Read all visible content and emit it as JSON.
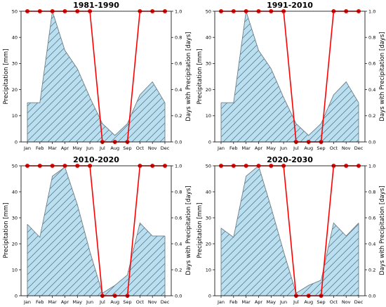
{
  "colors": {
    "area_fill": "#b9dff0",
    "area_edge": "#6f7f88",
    "hatch": "#5a6a74",
    "days_line": "#ff0000",
    "axes": "#000000"
  },
  "chart_data": [
    {
      "type": "area",
      "title": "1981-1990",
      "categories": [
        "Jan",
        "Feb",
        "Mar",
        "Apr",
        "May",
        "Jun",
        "Jul",
        "Aug",
        "Sep",
        "Oct",
        "Nov",
        "Dec"
      ],
      "ylabel": "Precipitation [mm]",
      "y2label": "Days with Precipitation [days]",
      "ylim": [
        0,
        50
      ],
      "y2lim": [
        0.0,
        1.0
      ],
      "yticks": [
        "0",
        "10",
        "20",
        "30",
        "40",
        "50"
      ],
      "y2ticks": [
        "0.0",
        "0.2",
        "0.4",
        "0.6",
        "0.8",
        "1.0"
      ],
      "grid": false,
      "series": [
        {
          "type": "area",
          "values": [
            15,
            15,
            50,
            35,
            28,
            17,
            7,
            2.5,
            7,
            18,
            23,
            15
          ]
        },
        {
          "type": "line",
          "axis": "right",
          "values": [
            1,
            1,
            1,
            1,
            1,
            1,
            0,
            0,
            0,
            1,
            1,
            1
          ]
        }
      ]
    },
    {
      "type": "area",
      "title": "1991-2010",
      "categories": [
        "Jan",
        "Feb",
        "Mar",
        "Apr",
        "May",
        "Jun",
        "Jul",
        "Aug",
        "Sep",
        "Oct",
        "Nov",
        "Dec"
      ],
      "ylabel": "Precipitation [mm]",
      "y2label": "Days with Precipitation [days]",
      "ylim": [
        0,
        50
      ],
      "y2lim": [
        0.0,
        1.0
      ],
      "yticks": [
        "0",
        "10",
        "20",
        "30",
        "40",
        "50"
      ],
      "y2ticks": [
        "0.0",
        "0.2",
        "0.4",
        "0.6",
        "0.8",
        "1.0"
      ],
      "grid": false,
      "series": [
        {
          "type": "area",
          "values": [
            15,
            15,
            50,
            35,
            28,
            17,
            7,
            2.5,
            7,
            18,
            23,
            15
          ]
        },
        {
          "type": "line",
          "axis": "right",
          "values": [
            1,
            1,
            1,
            1,
            1,
            1,
            0,
            0,
            0,
            1,
            1,
            1
          ]
        }
      ]
    },
    {
      "type": "area",
      "title": "2010-2020",
      "categories": [
        "Jan",
        "Feb",
        "Mar",
        "Apr",
        "May",
        "Jun",
        "Jul",
        "Aug",
        "Sep",
        "Oct",
        "Nov",
        "Dec"
      ],
      "ylabel": "Precipitation [mm]",
      "y2label": "Days with Precipitation [days]",
      "ylim": [
        0,
        50
      ],
      "y2lim": [
        0.0,
        1.0
      ],
      "yticks": [
        "0",
        "10",
        "20",
        "30",
        "40",
        "50"
      ],
      "y2ticks": [
        "0.0",
        "0.2",
        "0.4",
        "0.6",
        "0.8",
        "1.0"
      ],
      "grid": false,
      "series": [
        {
          "type": "area",
          "values": [
            27.5,
            22.5,
            46,
            49.5,
            35,
            17,
            1,
            4,
            8,
            28,
            23,
            23
          ]
        },
        {
          "type": "line",
          "axis": "right",
          "values": [
            1,
            1,
            1,
            1,
            1,
            1,
            0,
            0,
            0,
            1,
            1,
            1
          ]
        }
      ]
    },
    {
      "type": "area",
      "title": "2020-2030",
      "categories": [
        "Jan",
        "Feb",
        "Mar",
        "Apr",
        "May",
        "Jun",
        "Jul",
        "Aug",
        "Sep",
        "Oct",
        "Nov",
        "Dec"
      ],
      "ylabel": "Precipitation [mm]",
      "y2label": "Days with Precipitation [days]",
      "ylim": [
        0,
        50
      ],
      "y2lim": [
        0.0,
        1.0
      ],
      "yticks": [
        "0",
        "10",
        "20",
        "30",
        "40",
        "50"
      ],
      "y2ticks": [
        "0.0",
        "0.2",
        "0.4",
        "0.6",
        "0.8",
        "1.0"
      ],
      "grid": false,
      "series": [
        {
          "type": "area",
          "values": [
            26,
            22.5,
            46,
            50,
            34,
            17,
            1,
            4,
            6,
            28,
            23,
            28
          ]
        },
        {
          "type": "line",
          "axis": "right",
          "values": [
            1,
            1,
            1,
            1,
            1,
            1,
            0,
            0,
            0,
            1,
            1,
            1
          ]
        }
      ]
    }
  ]
}
